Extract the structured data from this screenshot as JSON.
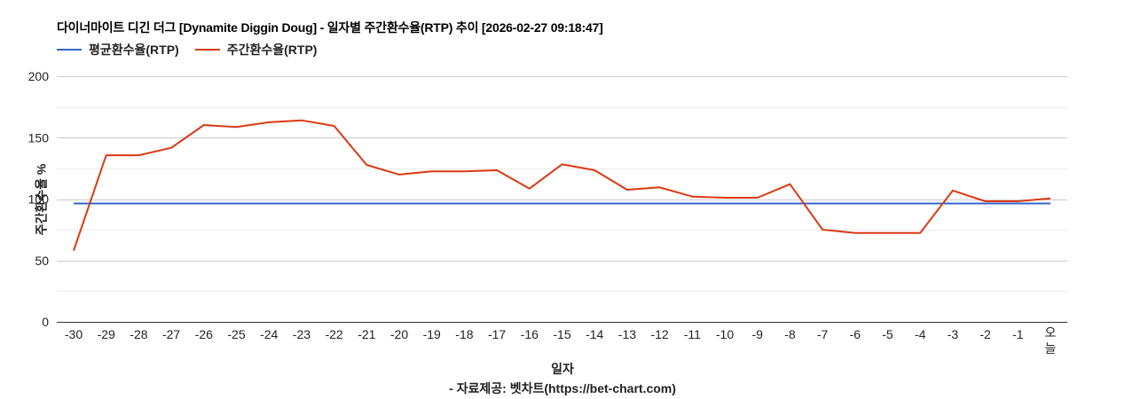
{
  "header": {
    "title": "다이너마이트 디긴 더그 [Dynamite Diggin Doug] - 일자별 주간환수율(RTP) 추이 [2026-02-27 09:18:47]"
  },
  "legend": [
    {
      "label": "평균환수율(RTP)",
      "color": "#3366cc"
    },
    {
      "label": "주간환수율(RTP)",
      "color": "#dc3912"
    }
  ],
  "axes": {
    "xlabel": "일자",
    "ylabel": "주간환수율 %"
  },
  "footer": {
    "source": "- 자료제공: 벳차트(https://bet-chart.com)"
  },
  "chart_data": {
    "type": "line",
    "title": "다이너마이트 디긴 더그 [Dynamite Diggin Doug] - 일자별 주간환수율(RTP) 추이 [2026-02-27 09:18:47]",
    "xlabel": "일자",
    "ylabel": "주간환수율 %",
    "ylim": [
      0,
      200
    ],
    "yticks": [
      0,
      50,
      100,
      150,
      200
    ],
    "grid": true,
    "legend_position": "top",
    "categories": [
      "-30",
      "-29",
      "-28",
      "-27",
      "-26",
      "-25",
      "-24",
      "-23",
      "-22",
      "-21",
      "-20",
      "-19",
      "-18",
      "-17",
      "-16",
      "-15",
      "-14",
      "-13",
      "-12",
      "-11",
      "-10",
      "-9",
      "-8",
      "-7",
      "-6",
      "-5",
      "-4",
      "-3",
      "-2",
      "-1",
      "오늘"
    ],
    "series": [
      {
        "name": "평균환수율(RTP)",
        "color": "#3366cc",
        "values": [
          96.4,
          96.4,
          96.4,
          96.4,
          96.4,
          96.4,
          96.4,
          96.4,
          96.4,
          96.4,
          96.4,
          96.4,
          96.4,
          96.4,
          96.4,
          96.4,
          96.4,
          96.4,
          96.4,
          96.4,
          96.4,
          96.4,
          96.4,
          96.4,
          96.4,
          96.4,
          96.4,
          96.4,
          96.4,
          96.4,
          96.4
        ]
      },
      {
        "name": "주간환수율(RTP)",
        "color": "#dc3912",
        "values": [
          58.0,
          135.7,
          135.7,
          141.7,
          160.3,
          158.6,
          162.5,
          164.1,
          159.6,
          127.8,
          119.9,
          122.5,
          122.5,
          123.5,
          108.5,
          128.3,
          123.5,
          107.6,
          109.5,
          102.0,
          101.1,
          101.1,
          112.1,
          75.1,
          72.4,
          72.4,
          72.4,
          106.9,
          98.2,
          98.2,
          100.6
        ]
      }
    ]
  }
}
